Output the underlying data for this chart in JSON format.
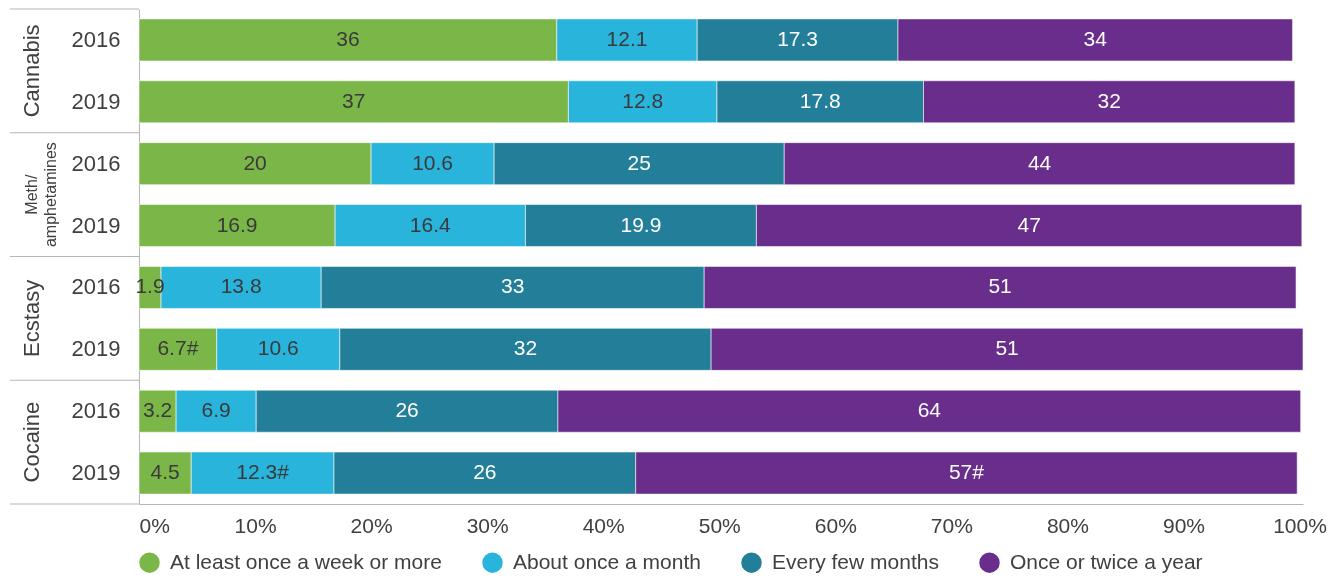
{
  "chart_data": {
    "type": "bar",
    "orientation": "horizontal",
    "stacked": true,
    "categories": [
      "2016",
      "2019",
      "2016",
      "2019",
      "2016",
      "2019",
      "2016",
      "2019"
    ],
    "series": [
      {
        "name": "At least once a week or more",
        "color": "#7ab648",
        "values": [
          36,
          37,
          20,
          16.9,
          1.9,
          6.7,
          3.2,
          4.5
        ],
        "value_labels": [
          "36",
          "37",
          "20",
          "16.9",
          "1.9",
          "6.7#",
          "3.2",
          "4.5"
        ]
      },
      {
        "name": "About once a month",
        "color": "#29b4dc",
        "values": [
          12.1,
          12.8,
          10.6,
          16.4,
          13.8,
          10.6,
          6.9,
          12.3
        ],
        "value_labels": [
          "12.1",
          "12.8",
          "10.6",
          "16.4",
          "13.8",
          "10.6",
          "6.9",
          "12.3#"
        ]
      },
      {
        "name": "Every few months",
        "color": "#237f99",
        "values": [
          17.3,
          17.8,
          25,
          19.9,
          33,
          32,
          26,
          26
        ],
        "value_labels": [
          "17.3",
          "17.8",
          "25",
          "19.9",
          "33",
          "32",
          "26",
          "26"
        ]
      },
      {
        "name": "Once or twice a year",
        "color": "#692d8c",
        "values": [
          34,
          32,
          44,
          47,
          51,
          51,
          64,
          57
        ],
        "value_labels": [
          "34",
          "32",
          "44",
          "47",
          "51",
          "51",
          "64",
          "57#"
        ]
      }
    ],
    "xlim": [
      0,
      100.3
    ],
    "xticks": [
      {
        "value": 0,
        "label": "0%"
      },
      {
        "value": 10,
        "label": "10%"
      },
      {
        "value": 20,
        "label": "20%"
      },
      {
        "value": 30,
        "label": "30%"
      },
      {
        "value": 40,
        "label": "40%"
      },
      {
        "value": 50,
        "label": "50%"
      },
      {
        "value": 60,
        "label": "60%"
      },
      {
        "value": 70,
        "label": "70%"
      },
      {
        "value": 80,
        "label": "80%"
      },
      {
        "value": 90,
        "label": "90%"
      },
      {
        "value": 100,
        "label": "100%"
      }
    ],
    "annotations": [
      "Cannabis",
      "Meth/amphetamines",
      "Ecstasy",
      "Cocaine"
    ],
    "legend": "bottom"
  }
}
